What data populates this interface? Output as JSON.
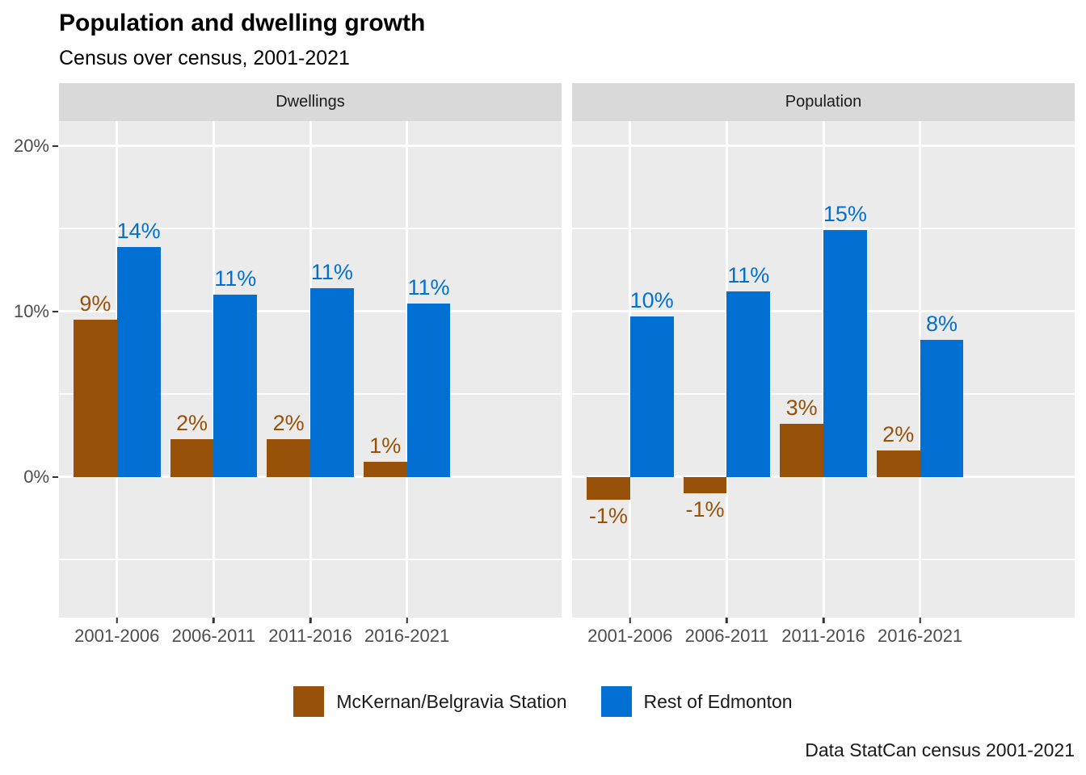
{
  "title": "Population and dwelling growth",
  "subtitle": "Census over census, 2001-2021",
  "caption": "Data StatCan census 2001-2021",
  "colors": {
    "mckernan_brown": "#985108",
    "edmonton_blue": "#0170D2",
    "panel_background": "#EBEBEB",
    "strip_background": "#D9D9D9",
    "gridline": "#FFFFFF",
    "axis_text": "#4D4D4D"
  },
  "chart_data": {
    "type": "bar",
    "title": "Population and dwelling growth",
    "subtitle": "Census over census, 2001-2021",
    "caption": "Data StatCan census 2001-2021",
    "grid": "on",
    "categories": [
      "2001-2006",
      "2006-2011",
      "2011-2016",
      "2016-2021"
    ],
    "xlabel": "",
    "ylabel": "",
    "y_axis": {
      "domain": [
        -8.5,
        21.5
      ],
      "ticks": [
        {
          "value": 20,
          "label": "20%"
        },
        {
          "value": 10,
          "label": "10%"
        },
        {
          "value": 0,
          "label": "0%"
        }
      ],
      "minor_ticks": [
        15,
        5,
        -5
      ]
    },
    "facets": [
      {
        "label": "Dwellings",
        "series": [
          {
            "name": "McKernan/Belgravia Station",
            "color": "#985108",
            "values": [
              9.5,
              2.3,
              2.3,
              0.9
            ],
            "labels": [
              "9%",
              "2%",
              "2%",
              "1%"
            ]
          },
          {
            "name": "Rest of Edmonton",
            "color": "#0170D2",
            "values": [
              13.9,
              11.0,
              11.4,
              10.5
            ],
            "labels": [
              "14%",
              "11%",
              "11%",
              "11%"
            ]
          }
        ]
      },
      {
        "label": "Population",
        "series": [
          {
            "name": "McKernan/Belgravia Station",
            "color": "#985108",
            "values": [
              -1.4,
              -1.0,
              3.2,
              1.6
            ],
            "labels": [
              "-1%",
              "-1%",
              "3%",
              "2%"
            ]
          },
          {
            "name": "Rest of Edmonton",
            "color": "#0170D2",
            "values": [
              9.7,
              11.2,
              14.9,
              8.3
            ],
            "labels": [
              "10%",
              "11%",
              "15%",
              "8%"
            ]
          }
        ]
      }
    ],
    "legend": {
      "position": "bottom",
      "items": [
        {
          "label": "McKernan/Belgravia Station",
          "color": "#985108"
        },
        {
          "label": "Rest of Edmonton",
          "color": "#0170D2"
        }
      ]
    }
  }
}
